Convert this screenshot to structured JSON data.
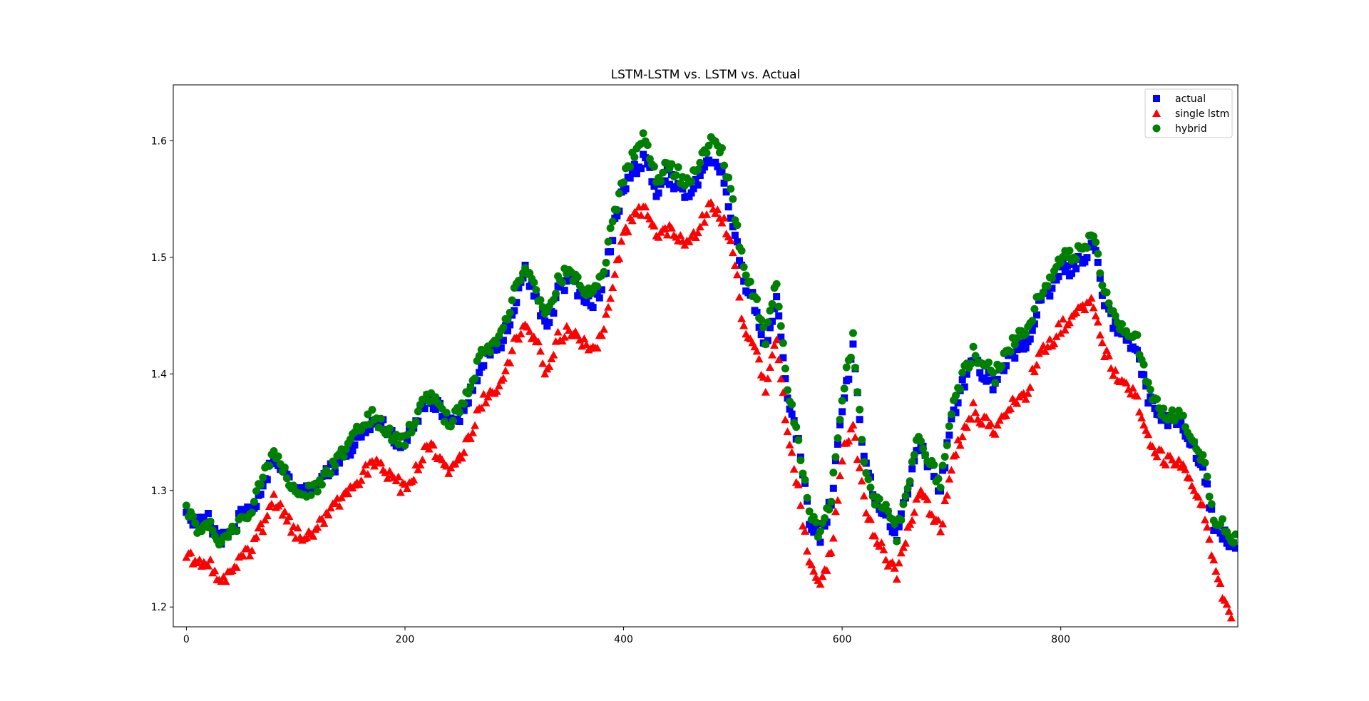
{
  "chart_data": {
    "type": "scatter",
    "title": "LSTM-LSTM vs. LSTM vs. Actual",
    "xlabel": "",
    "ylabel": "",
    "xlim": [
      -12,
      962
    ],
    "ylim": [
      1.183,
      1.648
    ],
    "xticks": [
      0,
      200,
      400,
      600,
      800
    ],
    "xtick_labels": [
      "0",
      "200",
      "400",
      "600",
      "800"
    ],
    "yticks": [
      1.2,
      1.3,
      1.4,
      1.5,
      1.6
    ],
    "ytick_labels": [
      "1.2",
      "1.3",
      "1.4",
      "1.5",
      "1.6"
    ],
    "grid": false,
    "legend": {
      "position": "top-right"
    },
    "colors": {
      "actual": "#0000ff",
      "single_lstm": "#ff0000",
      "hybrid": "#008000"
    },
    "x_start": 0,
    "x_step": 10,
    "series": [
      {
        "name": "actual",
        "marker": "square",
        "color": "#0000ff",
        "values": [
          1.285,
          1.27,
          1.275,
          1.258,
          1.262,
          1.278,
          1.282,
          1.305,
          1.33,
          1.315,
          1.298,
          1.3,
          1.305,
          1.315,
          1.325,
          1.335,
          1.35,
          1.36,
          1.355,
          1.345,
          1.34,
          1.36,
          1.38,
          1.372,
          1.355,
          1.365,
          1.385,
          1.41,
          1.42,
          1.43,
          1.46,
          1.49,
          1.465,
          1.44,
          1.47,
          1.48,
          1.47,
          1.46,
          1.47,
          1.52,
          1.56,
          1.575,
          1.585,
          1.555,
          1.57,
          1.56,
          1.55,
          1.57,
          1.585,
          1.575,
          1.53,
          1.48,
          1.46,
          1.42,
          1.47,
          1.38,
          1.34,
          1.275,
          1.26,
          1.29,
          1.37,
          1.42,
          1.325,
          1.295,
          1.28,
          1.26,
          1.3,
          1.34,
          1.32,
          1.3,
          1.36,
          1.39,
          1.41,
          1.4,
          1.39,
          1.41,
          1.42,
          1.425,
          1.46,
          1.47,
          1.49,
          1.49,
          1.5,
          1.51,
          1.46,
          1.44,
          1.43,
          1.42,
          1.38,
          1.365,
          1.36,
          1.355,
          1.34,
          1.32,
          1.27,
          1.26
        ]
      },
      {
        "name": "single lstm",
        "marker": "triangle",
        "color": "#ff0000",
        "values": [
          1.248,
          1.236,
          1.238,
          1.222,
          1.23,
          1.243,
          1.25,
          1.27,
          1.292,
          1.282,
          1.262,
          1.263,
          1.268,
          1.278,
          1.29,
          1.298,
          1.312,
          1.325,
          1.317,
          1.31,
          1.3,
          1.318,
          1.34,
          1.33,
          1.315,
          1.328,
          1.35,
          1.375,
          1.385,
          1.398,
          1.425,
          1.447,
          1.428,
          1.4,
          1.43,
          1.44,
          1.43,
          1.42,
          1.43,
          1.48,
          1.52,
          1.535,
          1.545,
          1.52,
          1.525,
          1.515,
          1.51,
          1.53,
          1.545,
          1.535,
          1.505,
          1.44,
          1.425,
          1.385,
          1.43,
          1.35,
          1.3,
          1.235,
          1.225,
          1.245,
          1.33,
          1.36,
          1.29,
          1.26,
          1.245,
          1.225,
          1.265,
          1.3,
          1.285,
          1.265,
          1.32,
          1.35,
          1.37,
          1.36,
          1.35,
          1.37,
          1.38,
          1.385,
          1.42,
          1.425,
          1.44,
          1.445,
          1.455,
          1.46,
          1.42,
          1.4,
          1.39,
          1.38,
          1.345,
          1.33,
          1.325,
          1.32,
          1.305,
          1.285,
          1.235,
          1.205
        ]
      },
      {
        "name": "hybrid",
        "marker": "circle",
        "color": "#008000",
        "values": [
          1.282,
          1.268,
          1.272,
          1.256,
          1.262,
          1.276,
          1.284,
          1.312,
          1.332,
          1.316,
          1.298,
          1.3,
          1.304,
          1.318,
          1.33,
          1.34,
          1.356,
          1.364,
          1.354,
          1.345,
          1.342,
          1.364,
          1.382,
          1.374,
          1.358,
          1.37,
          1.39,
          1.416,
          1.424,
          1.436,
          1.47,
          1.494,
          1.47,
          1.448,
          1.478,
          1.49,
          1.478,
          1.468,
          1.48,
          1.53,
          1.57,
          1.59,
          1.605,
          1.565,
          1.58,
          1.572,
          1.56,
          1.582,
          1.6,
          1.59,
          1.545,
          1.49,
          1.468,
          1.428,
          1.48,
          1.385,
          1.345,
          1.278,
          1.262,
          1.292,
          1.38,
          1.43,
          1.32,
          1.292,
          1.282,
          1.262,
          1.302,
          1.35,
          1.325,
          1.305,
          1.365,
          1.398,
          1.418,
          1.408,
          1.398,
          1.42,
          1.432,
          1.435,
          1.47,
          1.48,
          1.5,
          1.5,
          1.51,
          1.52,
          1.47,
          1.445,
          1.44,
          1.43,
          1.388,
          1.37,
          1.365,
          1.362,
          1.345,
          1.328,
          1.278,
          1.268
        ]
      }
    ]
  }
}
